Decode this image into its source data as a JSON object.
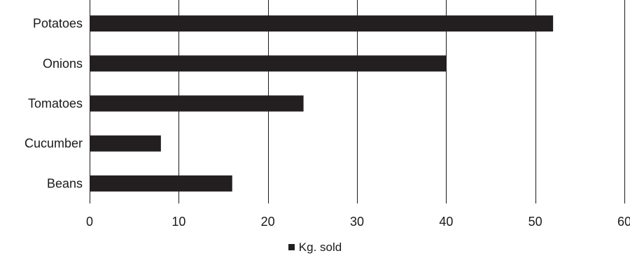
{
  "chart_data": {
    "type": "bar",
    "orientation": "horizontal",
    "categories": [
      "Potatoes",
      "Onions",
      "Tomatoes",
      "Cucumber",
      "Beans"
    ],
    "series": [
      {
        "name": "Kg. sold",
        "values": [
          52,
          40,
          24,
          8,
          16
        ]
      }
    ],
    "xlim": [
      0,
      60
    ],
    "xticks": [
      0,
      10,
      20,
      30,
      40,
      50,
      60
    ],
    "grid": "vertical",
    "legend_position": "bottom",
    "bar_color": "#231f20"
  }
}
